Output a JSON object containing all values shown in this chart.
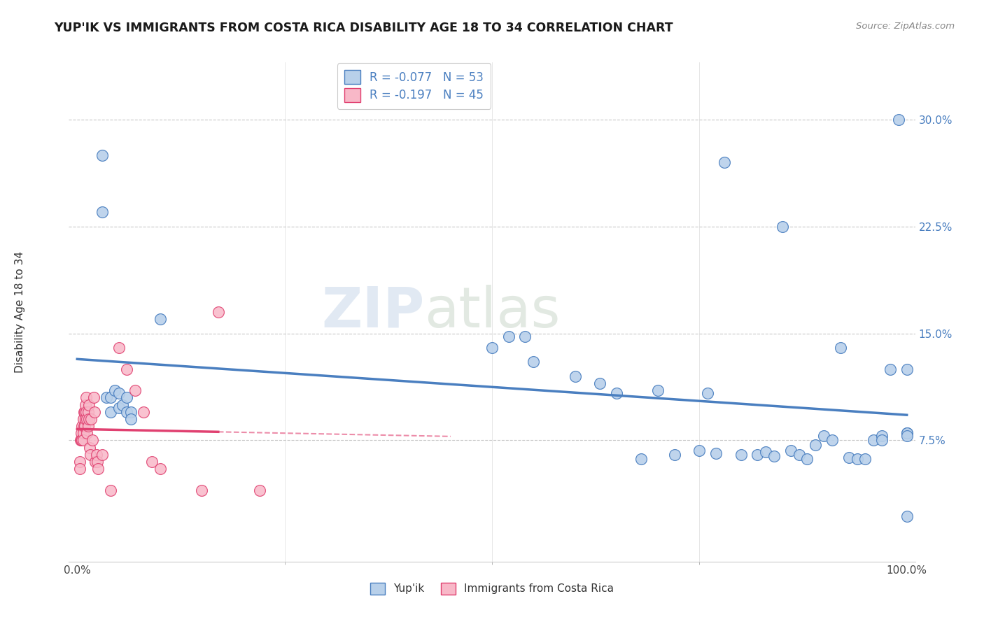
{
  "title": "YUP'IK VS IMMIGRANTS FROM COSTA RICA DISABILITY AGE 18 TO 34 CORRELATION CHART",
  "source": "Source: ZipAtlas.com",
  "ylabel": "Disability Age 18 to 34",
  "ytick_labels": [
    "7.5%",
    "15.0%",
    "22.5%",
    "30.0%"
  ],
  "ytick_values": [
    0.075,
    0.15,
    0.225,
    0.3
  ],
  "xlim": [
    -0.01,
    1.01
  ],
  "ylim": [
    -0.01,
    0.34
  ],
  "r1": -0.077,
  "n1": 53,
  "r2": -0.197,
  "n2": 45,
  "color_blue": "#b8d0ea",
  "color_pink": "#f8b8c8",
  "line_color_blue": "#4a7fc0",
  "line_color_pink": "#e04070",
  "watermark_zip": "ZIP",
  "watermark_atlas": "atlas",
  "legend_label1": "Yup'ik",
  "legend_label2": "Immigrants from Costa Rica",
  "blue_x": [
    0.03,
    0.03,
    0.035,
    0.04,
    0.04,
    0.045,
    0.05,
    0.05,
    0.055,
    0.06,
    0.06,
    0.065,
    0.065,
    0.1,
    0.5,
    0.52,
    0.54,
    0.55,
    0.6,
    0.63,
    0.65,
    0.68,
    0.7,
    0.72,
    0.75,
    0.76,
    0.77,
    0.78,
    0.8,
    0.82,
    0.83,
    0.84,
    0.85,
    0.86,
    0.87,
    0.88,
    0.89,
    0.9,
    0.91,
    0.92,
    0.93,
    0.94,
    0.95,
    0.96,
    0.97,
    0.97,
    0.98,
    0.99,
    1.0,
    1.0,
    1.0,
    1.0,
    1.0
  ],
  "blue_y": [
    0.275,
    0.235,
    0.105,
    0.105,
    0.095,
    0.11,
    0.108,
    0.098,
    0.1,
    0.105,
    0.095,
    0.095,
    0.09,
    0.16,
    0.14,
    0.148,
    0.148,
    0.13,
    0.12,
    0.115,
    0.108,
    0.062,
    0.11,
    0.065,
    0.068,
    0.108,
    0.066,
    0.27,
    0.065,
    0.065,
    0.067,
    0.064,
    0.225,
    0.068,
    0.065,
    0.062,
    0.072,
    0.078,
    0.075,
    0.14,
    0.063,
    0.062,
    0.062,
    0.075,
    0.078,
    0.075,
    0.125,
    0.3,
    0.08,
    0.08,
    0.078,
    0.125,
    0.022
  ],
  "pink_x": [
    0.003,
    0.003,
    0.004,
    0.005,
    0.005,
    0.006,
    0.006,
    0.007,
    0.007,
    0.007,
    0.008,
    0.008,
    0.009,
    0.009,
    0.01,
    0.01,
    0.011,
    0.011,
    0.012,
    0.012,
    0.013,
    0.013,
    0.014,
    0.014,
    0.015,
    0.016,
    0.017,
    0.018,
    0.02,
    0.021,
    0.022,
    0.023,
    0.024,
    0.025,
    0.03,
    0.04,
    0.05,
    0.06,
    0.07,
    0.08,
    0.09,
    0.1,
    0.15,
    0.17,
    0.22
  ],
  "pink_y": [
    0.06,
    0.055,
    0.075,
    0.08,
    0.075,
    0.085,
    0.075,
    0.09,
    0.08,
    0.075,
    0.095,
    0.085,
    0.095,
    0.085,
    0.1,
    0.09,
    0.105,
    0.095,
    0.09,
    0.08,
    0.095,
    0.085,
    0.1,
    0.09,
    0.07,
    0.065,
    0.09,
    0.075,
    0.105,
    0.095,
    0.06,
    0.065,
    0.06,
    0.055,
    0.065,
    0.04,
    0.14,
    0.125,
    0.11,
    0.095,
    0.06,
    0.055,
    0.04,
    0.165,
    0.04
  ]
}
